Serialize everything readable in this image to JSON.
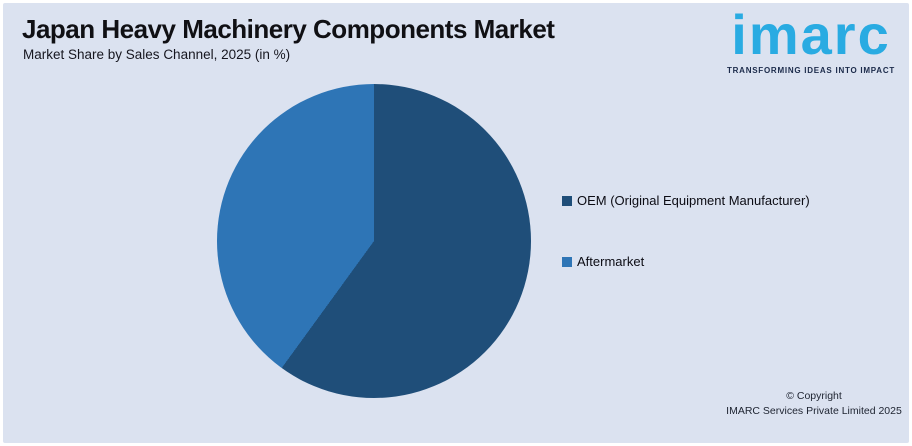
{
  "header": {
    "title": "Japan Heavy Machinery Components Market",
    "subtitle": "Market Share by Sales Channel, 2025 (in %)"
  },
  "logo": {
    "brand": "imarc",
    "tagline": "TRANSFORMING IDEAS INTO IMPACT",
    "brand_color": "#29abe2",
    "tagline_color": "#1b2a4a"
  },
  "chart_data": {
    "type": "pie",
    "title": "Japan Heavy Machinery Components Market",
    "subtitle": "Market Share by Sales Channel, 2025 (in %)",
    "labels": [
      "OEM (Original Equipment Manufacturer)",
      "Aftermarket"
    ],
    "values": [
      60,
      40
    ],
    "unit": "%",
    "colors": [
      "#1f4e79",
      "#2e75b6"
    ],
    "start_angle_deg": 0,
    "direction": "clockwise",
    "legend_position": "right",
    "data_labels_shown": false
  },
  "footer": {
    "copyright_line1": "© Copyright",
    "copyright_line2": "IMARC Services Private Limited 2025"
  },
  "colors": {
    "panel_background": "#dbe2f0",
    "page_border": "#ffffff",
    "title_text": "#101014"
  }
}
